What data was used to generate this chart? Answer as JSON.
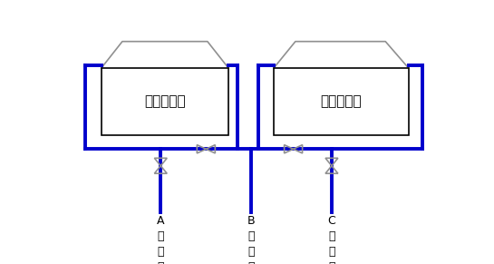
{
  "bg_color": "#ffffff",
  "blue": "#0000cc",
  "black": "#000000",
  "gray": "#909090",
  "lp_label": "低压凝汽器",
  "hp_label": "高压凝汽器",
  "pump_a_label": "A\n真\n空\n泵",
  "pump_b_label": "B\n真\n空\n泵",
  "pump_c_label": "C\n真\n空\n泵",
  "figsize": [
    5.45,
    2.91
  ],
  "dpi": 100,
  "lw_blue": 2.8,
  "lw_black": 1.2,
  "lw_gray": 1.2
}
